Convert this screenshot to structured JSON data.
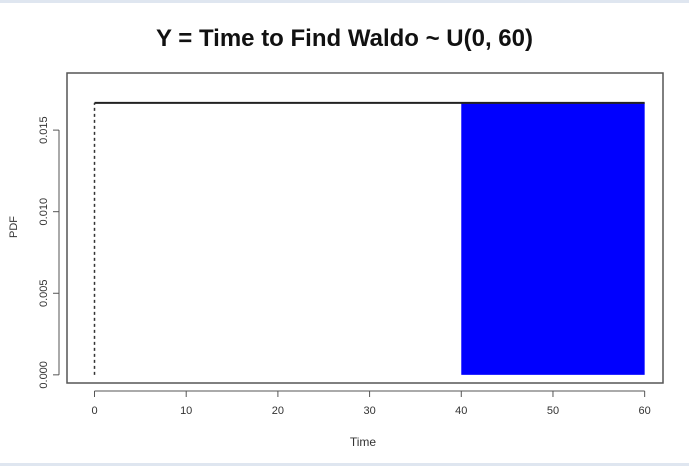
{
  "chart_data": {
    "type": "area",
    "title": "Y = Time to Find Waldo ~ U(0, 60)",
    "xlabel": "Time",
    "ylabel": "PDF",
    "xlim": [
      -3,
      62
    ],
    "ylim": [
      -0.0005,
      0.0185
    ],
    "x_ticks": [
      0,
      10,
      20,
      30,
      40,
      50,
      60
    ],
    "y_ticks": [
      0.0,
      0.005,
      0.01,
      0.015
    ],
    "y_tick_labels": [
      "0.000",
      "0.005",
      "0.010",
      "0.015"
    ],
    "series": [
      {
        "x": [
          0,
          60
        ],
        "y": [
          0.01667,
          0.01667
        ],
        "line_color": "#222222"
      }
    ],
    "vertical_dashed_line": {
      "x": 0,
      "y_from": 0,
      "y_to": 0.01667
    },
    "shaded_region": {
      "x_from": 40,
      "x_to": 60,
      "height": 0.01667,
      "color": "#0000ff"
    },
    "grid": false
  }
}
